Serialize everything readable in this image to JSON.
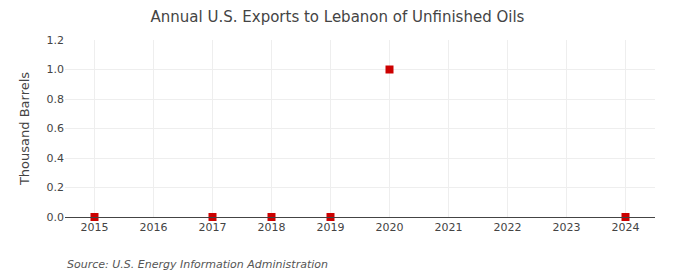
{
  "chart_data": {
    "type": "scatter",
    "title": "Annual U.S. Exports to Lebanon of Unfinished Oils",
    "ylabel": "Thousand Barrels",
    "annotations": [
      "Source: U.S. Energy Information Administration"
    ],
    "x": [
      2015,
      2017,
      2018,
      2019,
      2020,
      2024
    ],
    "values": [
      0,
      0,
      0,
      0,
      1.0,
      0
    ],
    "color": "#cc0000",
    "marker": "square",
    "xlim": [
      2014.5,
      2024.5
    ],
    "xticks": [
      2015,
      2016,
      2017,
      2018,
      2019,
      2020,
      2021,
      2022,
      2023,
      2024
    ],
    "ylim": [
      0.0,
      1.2
    ],
    "yticks": [
      {
        "value": 0,
        "label": "0.0"
      },
      0.2,
      0.4,
      0.6,
      0.8,
      {
        "value": 1,
        "label": "1.0"
      },
      1.2
    ],
    "grid": true
  }
}
